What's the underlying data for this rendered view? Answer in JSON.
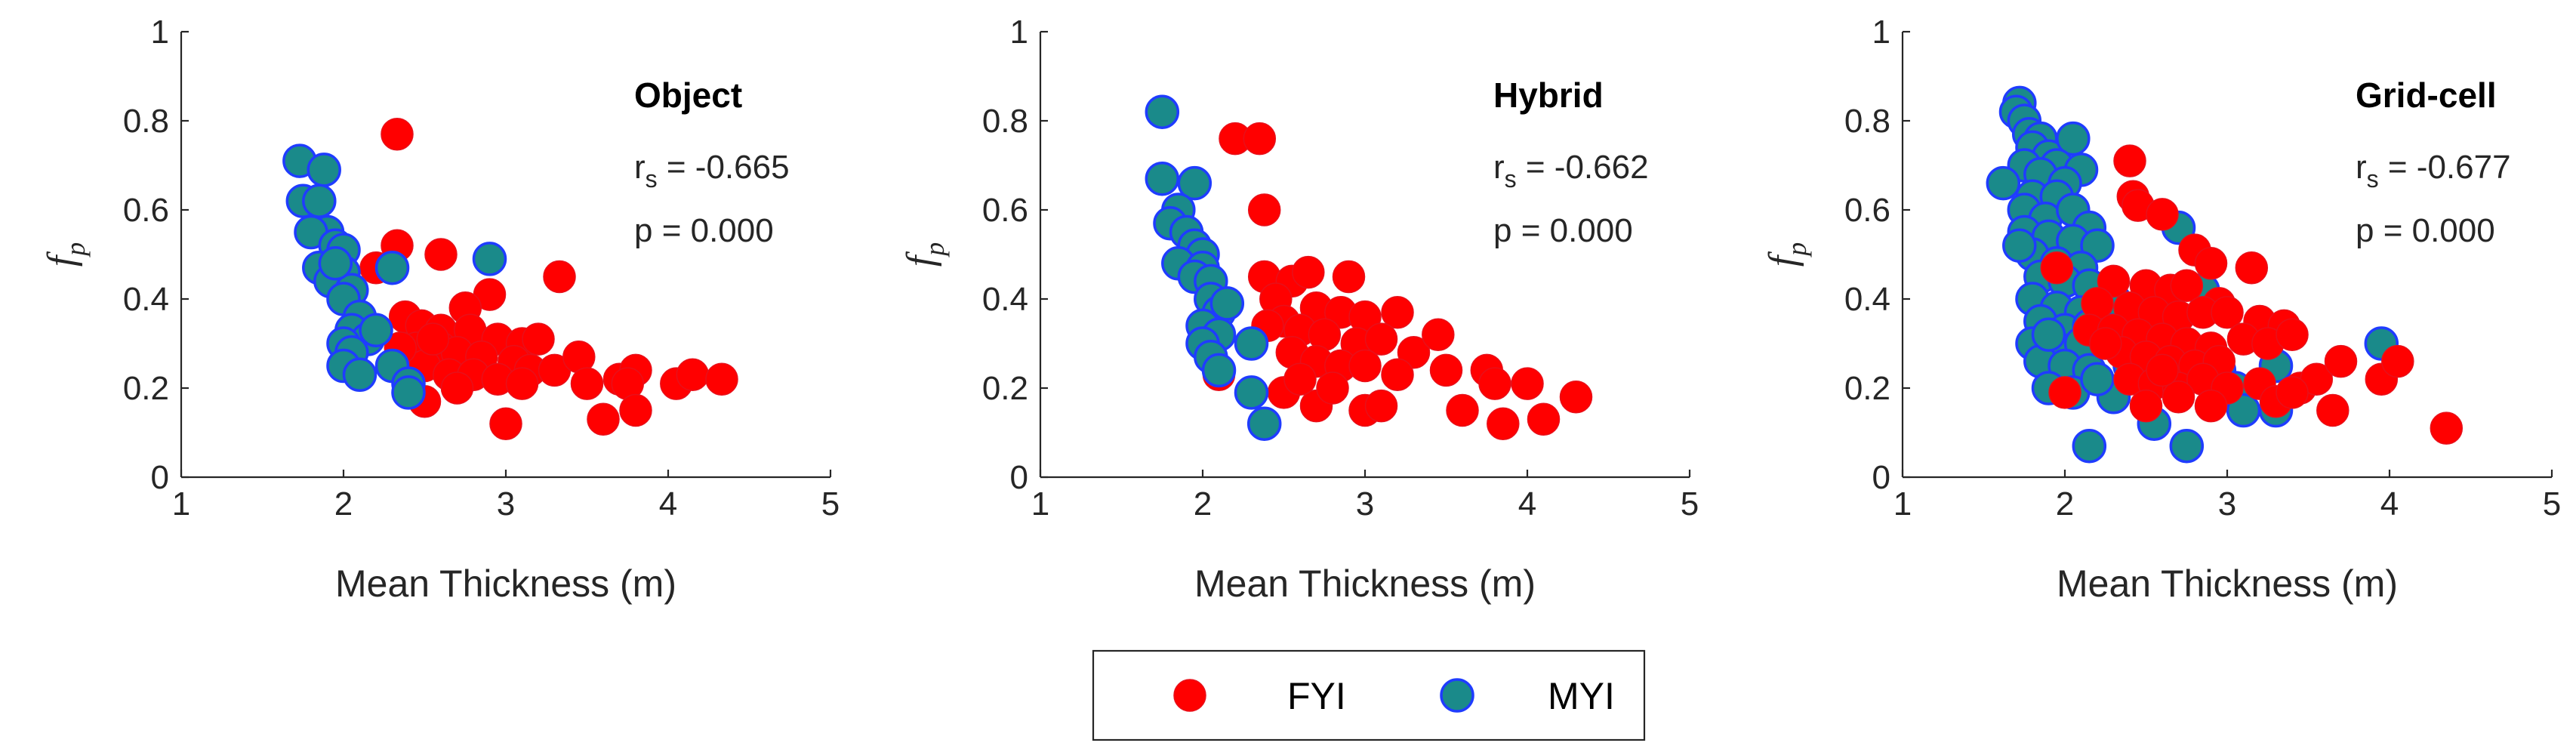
{
  "colors": {
    "fyi_fill": "#ff0000",
    "fyi_edge": "#e8101a",
    "myi_fill": "#1a8a8a",
    "myi_edge": "#1f3cff"
  },
  "legend": {
    "items": [
      {
        "label": "FYI",
        "series": "FYI"
      },
      {
        "label": "MYI",
        "series": "MYI"
      }
    ],
    "placement": "bottom-center"
  },
  "chart_data": [
    {
      "type": "scatter",
      "title": "Object",
      "xlabel": "Mean Thickness (m)",
      "ylabel": "f",
      "ylabel_sub": "p",
      "stat_r_label": "r",
      "stat_r_sub": "s",
      "stat_r_value": " = -0.665",
      "stat_p": "p = 0.000",
      "xlim": [
        1,
        5
      ],
      "ylim": [
        0,
        1
      ],
      "xticks": [
        "1",
        "2",
        "3",
        "4",
        "5"
      ],
      "yticks": [
        "0",
        "0.2",
        "0.4",
        "0.6",
        "0.8",
        "1"
      ],
      "grid": false,
      "series": [
        {
          "name": "FYI",
          "points": [
            [
              2.33,
              0.77
            ],
            [
              2.33,
              0.52
            ],
            [
              2.6,
              0.5
            ],
            [
              2.2,
              0.47
            ],
            [
              2.9,
              0.41
            ],
            [
              2.75,
              0.38
            ],
            [
              3.33,
              0.45
            ],
            [
              2.38,
              0.36
            ],
            [
              2.48,
              0.34
            ],
            [
              2.6,
              0.33
            ],
            [
              2.78,
              0.33
            ],
            [
              2.95,
              0.31
            ],
            [
              3.1,
              0.3
            ],
            [
              3.2,
              0.31
            ],
            [
              2.45,
              0.29
            ],
            [
              2.6,
              0.29
            ],
            [
              2.7,
              0.28
            ],
            [
              2.85,
              0.27
            ],
            [
              3.05,
              0.26
            ],
            [
              3.15,
              0.24
            ],
            [
              3.3,
              0.24
            ],
            [
              3.45,
              0.27
            ],
            [
              2.5,
              0.25
            ],
            [
              2.65,
              0.23
            ],
            [
              2.8,
              0.23
            ],
            [
              2.95,
              0.22
            ],
            [
              3.1,
              0.21
            ],
            [
              3.5,
              0.21
            ],
            [
              3.7,
              0.22
            ],
            [
              3.8,
              0.24
            ],
            [
              3.75,
              0.21
            ],
            [
              4.05,
              0.21
            ],
            [
              4.15,
              0.23
            ],
            [
              4.33,
              0.22
            ],
            [
              2.1,
              0.23
            ],
            [
              2.5,
              0.17
            ],
            [
              2.7,
              0.2
            ],
            [
              3.0,
              0.12
            ],
            [
              3.6,
              0.13
            ],
            [
              3.8,
              0.15
            ],
            [
              2.35,
              0.29
            ],
            [
              2.55,
              0.31
            ]
          ]
        },
        {
          "name": "MYI",
          "points": [
            [
              1.73,
              0.71
            ],
            [
              1.88,
              0.69
            ],
            [
              1.75,
              0.62
            ],
            [
              1.85,
              0.62
            ],
            [
              1.9,
              0.55
            ],
            [
              1.8,
              0.55
            ],
            [
              1.95,
              0.52
            ],
            [
              2.0,
              0.51
            ],
            [
              1.85,
              0.47
            ],
            [
              2.0,
              0.46
            ],
            [
              1.92,
              0.44
            ],
            [
              2.05,
              0.42
            ],
            [
              2.0,
              0.4
            ],
            [
              2.1,
              0.36
            ],
            [
              2.05,
              0.33
            ],
            [
              2.15,
              0.31
            ],
            [
              2.0,
              0.3
            ],
            [
              2.05,
              0.28
            ],
            [
              2.0,
              0.25
            ],
            [
              2.3,
              0.25
            ],
            [
              2.4,
              0.21
            ],
            [
              2.3,
              0.47
            ],
            [
              2.9,
              0.49
            ],
            [
              1.95,
              0.48
            ],
            [
              2.2,
              0.33
            ],
            [
              2.1,
              0.23
            ],
            [
              2.4,
              0.19
            ]
          ]
        }
      ]
    },
    {
      "type": "scatter",
      "title": "Hybrid",
      "xlabel": "Mean Thickness (m)",
      "ylabel": "f",
      "ylabel_sub": "p",
      "stat_r_label": "r",
      "stat_r_sub": "s",
      "stat_r_value": " = -0.662",
      "stat_p": "p = 0.000",
      "xlim": [
        1,
        5
      ],
      "ylim": [
        0,
        1
      ],
      "xticks": [
        "1",
        "2",
        "3",
        "4",
        "5"
      ],
      "yticks": [
        "0",
        "0.2",
        "0.4",
        "0.6",
        "0.8",
        "1"
      ],
      "grid": false,
      "series": [
        {
          "name": "FYI",
          "points": [
            [
              2.2,
              0.76
            ],
            [
              2.35,
              0.76
            ],
            [
              2.38,
              0.6
            ],
            [
              2.38,
              0.45
            ],
            [
              2.55,
              0.44
            ],
            [
              2.65,
              0.46
            ],
            [
              2.9,
              0.45
            ],
            [
              2.45,
              0.4
            ],
            [
              2.7,
              0.38
            ],
            [
              2.85,
              0.37
            ],
            [
              3.0,
              0.36
            ],
            [
              3.2,
              0.37
            ],
            [
              2.5,
              0.35
            ],
            [
              2.6,
              0.33
            ],
            [
              2.75,
              0.32
            ],
            [
              2.95,
              0.3
            ],
            [
              3.1,
              0.31
            ],
            [
              3.3,
              0.28
            ],
            [
              3.45,
              0.32
            ],
            [
              2.55,
              0.28
            ],
            [
              2.7,
              0.26
            ],
            [
              2.85,
              0.25
            ],
            [
              3.0,
              0.25
            ],
            [
              3.2,
              0.23
            ],
            [
              3.5,
              0.24
            ],
            [
              3.75,
              0.24
            ],
            [
              3.8,
              0.21
            ],
            [
              4.0,
              0.21
            ],
            [
              4.3,
              0.18
            ],
            [
              2.1,
              0.23
            ],
            [
              2.5,
              0.19
            ],
            [
              2.7,
              0.16
            ],
            [
              2.8,
              0.2
            ],
            [
              3.0,
              0.15
            ],
            [
              3.1,
              0.16
            ],
            [
              3.6,
              0.15
            ],
            [
              3.85,
              0.12
            ],
            [
              4.1,
              0.13
            ],
            [
              2.4,
              0.34
            ],
            [
              2.6,
              0.22
            ]
          ]
        },
        {
          "name": "MYI",
          "points": [
            [
              1.75,
              0.82
            ],
            [
              1.75,
              0.67
            ],
            [
              1.95,
              0.66
            ],
            [
              1.85,
              0.6
            ],
            [
              1.8,
              0.57
            ],
            [
              1.9,
              0.55
            ],
            [
              1.95,
              0.52
            ],
            [
              2.0,
              0.5
            ],
            [
              1.85,
              0.48
            ],
            [
              2.0,
              0.47
            ],
            [
              1.95,
              0.45
            ],
            [
              2.05,
              0.44
            ],
            [
              2.05,
              0.4
            ],
            [
              2.1,
              0.37
            ],
            [
              2.0,
              0.34
            ],
            [
              2.1,
              0.32
            ],
            [
              2.0,
              0.3
            ],
            [
              2.05,
              0.27
            ],
            [
              2.3,
              0.3
            ],
            [
              2.3,
              0.19
            ],
            [
              2.38,
              0.12
            ],
            [
              2.15,
              0.39
            ],
            [
              2.1,
              0.24
            ]
          ]
        }
      ]
    },
    {
      "type": "scatter",
      "title": "Grid-cell",
      "xlabel": "Mean Thickness (m)",
      "ylabel": "f",
      "ylabel_sub": "p",
      "stat_r_label": "r",
      "stat_r_sub": "s",
      "stat_r_value": " = -0.677",
      "stat_p": "p = 0.000",
      "xlim": [
        1,
        5
      ],
      "ylim": [
        0,
        1
      ],
      "xticks": [
        "1",
        "2",
        "3",
        "4",
        "5"
      ],
      "yticks": [
        "0",
        "0.2",
        "0.4",
        "0.6",
        "0.8",
        "1"
      ],
      "grid": false,
      "series": [
        {
          "name": "MYI",
          "points": [
            [
              1.72,
              0.84
            ],
            [
              1.7,
              0.82
            ],
            [
              1.75,
              0.8
            ],
            [
              1.78,
              0.77
            ],
            [
              1.85,
              0.76
            ],
            [
              1.8,
              0.74
            ],
            [
              1.9,
              0.72
            ],
            [
              2.05,
              0.76
            ],
            [
              1.75,
              0.7
            ],
            [
              1.95,
              0.7
            ],
            [
              2.1,
              0.69
            ],
            [
              1.85,
              0.68
            ],
            [
              2.0,
              0.66
            ],
            [
              1.62,
              0.66
            ],
            [
              1.8,
              0.63
            ],
            [
              1.95,
              0.63
            ],
            [
              1.75,
              0.6
            ],
            [
              1.88,
              0.58
            ],
            [
              2.05,
              0.6
            ],
            [
              2.15,
              0.56
            ],
            [
              1.75,
              0.55
            ],
            [
              1.9,
              0.54
            ],
            [
              2.05,
              0.53
            ],
            [
              2.2,
              0.52
            ],
            [
              1.8,
              0.5
            ],
            [
              1.95,
              0.48
            ],
            [
              2.1,
              0.47
            ],
            [
              1.85,
              0.45
            ],
            [
              2.0,
              0.44
            ],
            [
              2.15,
              0.43
            ],
            [
              1.8,
              0.4
            ],
            [
              1.95,
              0.38
            ],
            [
              2.1,
              0.37
            ],
            [
              2.25,
              0.38
            ],
            [
              1.85,
              0.35
            ],
            [
              2.0,
              0.33
            ],
            [
              2.15,
              0.34
            ],
            [
              1.8,
              0.3
            ],
            [
              1.95,
              0.29
            ],
            [
              2.1,
              0.3
            ],
            [
              2.35,
              0.31
            ],
            [
              1.85,
              0.26
            ],
            [
              2.0,
              0.25
            ],
            [
              2.15,
              0.24
            ],
            [
              2.4,
              0.25
            ],
            [
              2.6,
              0.27
            ],
            [
              1.9,
              0.2
            ],
            [
              2.05,
              0.19
            ],
            [
              2.3,
              0.18
            ],
            [
              2.55,
              0.12
            ],
            [
              2.75,
              0.07
            ],
            [
              2.15,
              0.07
            ],
            [
              2.7,
              0.56
            ],
            [
              2.95,
              0.24
            ],
            [
              3.05,
              0.2
            ],
            [
              3.3,
              0.25
            ],
            [
              3.1,
              0.15
            ],
            [
              3.3,
              0.15
            ],
            [
              3.95,
              0.3
            ],
            [
              2.85,
              0.42
            ],
            [
              1.9,
              0.32
            ],
            [
              2.2,
              0.22
            ],
            [
              1.72,
              0.52
            ],
            [
              2.3,
              0.4
            ],
            [
              2.5,
              0.34
            ]
          ]
        },
        {
          "name": "FYI",
          "points": [
            [
              2.4,
              0.71
            ],
            [
              2.42,
              0.63
            ],
            [
              2.45,
              0.61
            ],
            [
              2.6,
              0.59
            ],
            [
              1.95,
              0.47
            ],
            [
              2.8,
              0.51
            ],
            [
              2.9,
              0.48
            ],
            [
              3.15,
              0.47
            ],
            [
              2.3,
              0.44
            ],
            [
              2.5,
              0.43
            ],
            [
              2.65,
              0.42
            ],
            [
              2.75,
              0.43
            ],
            [
              2.95,
              0.39
            ],
            [
              2.2,
              0.39
            ],
            [
              2.4,
              0.38
            ],
            [
              2.55,
              0.37
            ],
            [
              2.7,
              0.36
            ],
            [
              2.85,
              0.37
            ],
            [
              3.0,
              0.37
            ],
            [
              3.2,
              0.35
            ],
            [
              3.35,
              0.34
            ],
            [
              2.15,
              0.33
            ],
            [
              2.3,
              0.33
            ],
            [
              2.45,
              0.32
            ],
            [
              2.6,
              0.31
            ],
            [
              2.75,
              0.3
            ],
            [
              2.9,
              0.29
            ],
            [
              3.1,
              0.31
            ],
            [
              3.25,
              0.3
            ],
            [
              3.4,
              0.32
            ],
            [
              2.35,
              0.28
            ],
            [
              2.5,
              0.27
            ],
            [
              2.65,
              0.26
            ],
            [
              2.8,
              0.25
            ],
            [
              2.95,
              0.26
            ],
            [
              2.4,
              0.22
            ],
            [
              2.55,
              0.21
            ],
            [
              2.7,
              0.2
            ],
            [
              2.85,
              0.22
            ],
            [
              3.0,
              0.2
            ],
            [
              3.2,
              0.21
            ],
            [
              3.45,
              0.2
            ],
            [
              3.55,
              0.22
            ],
            [
              3.7,
              0.26
            ],
            [
              3.95,
              0.22
            ],
            [
              4.05,
              0.26
            ],
            [
              2.0,
              0.19
            ],
            [
              2.5,
              0.16
            ],
            [
              2.7,
              0.18
            ],
            [
              2.9,
              0.16
            ],
            [
              3.3,
              0.17
            ],
            [
              3.4,
              0.19
            ],
            [
              3.65,
              0.15
            ],
            [
              4.35,
              0.11
            ],
            [
              2.25,
              0.3
            ],
            [
              2.6,
              0.24
            ]
          ]
        }
      ]
    }
  ]
}
